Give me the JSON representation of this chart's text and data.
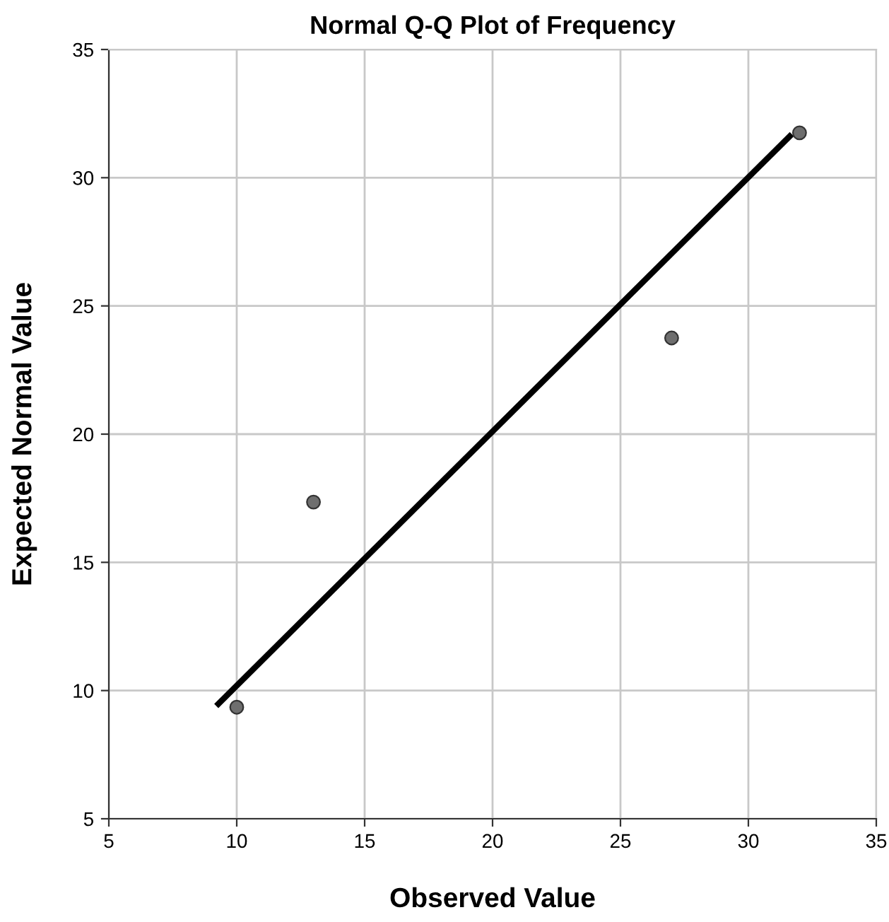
{
  "chart_data": {
    "type": "scatter",
    "title": "Normal Q-Q Plot of Frequency",
    "xlabel": "Observed Value",
    "ylabel": "Expected Normal Value",
    "series": [
      {
        "color": "#6e6e6e",
        "marker": "circle",
        "x": [
          10,
          13,
          27,
          32
        ],
        "values": [
          9.35,
          17.35,
          23.75,
          31.75
        ]
      },
      {
        "type": "line",
        "color": "#000000",
        "line_style": "solid",
        "marker": "none",
        "x": [
          9.2,
          31.7
        ],
        "values": [
          9.4,
          31.7
        ]
      }
    ],
    "xlim": [
      5,
      35
    ],
    "ylim": [
      5,
      35
    ],
    "xticks": [
      5,
      10,
      15,
      20,
      25,
      30,
      35
    ],
    "yticks": [
      5,
      10,
      15,
      20,
      25,
      30,
      35
    ],
    "grid": true,
    "legend": false
  }
}
